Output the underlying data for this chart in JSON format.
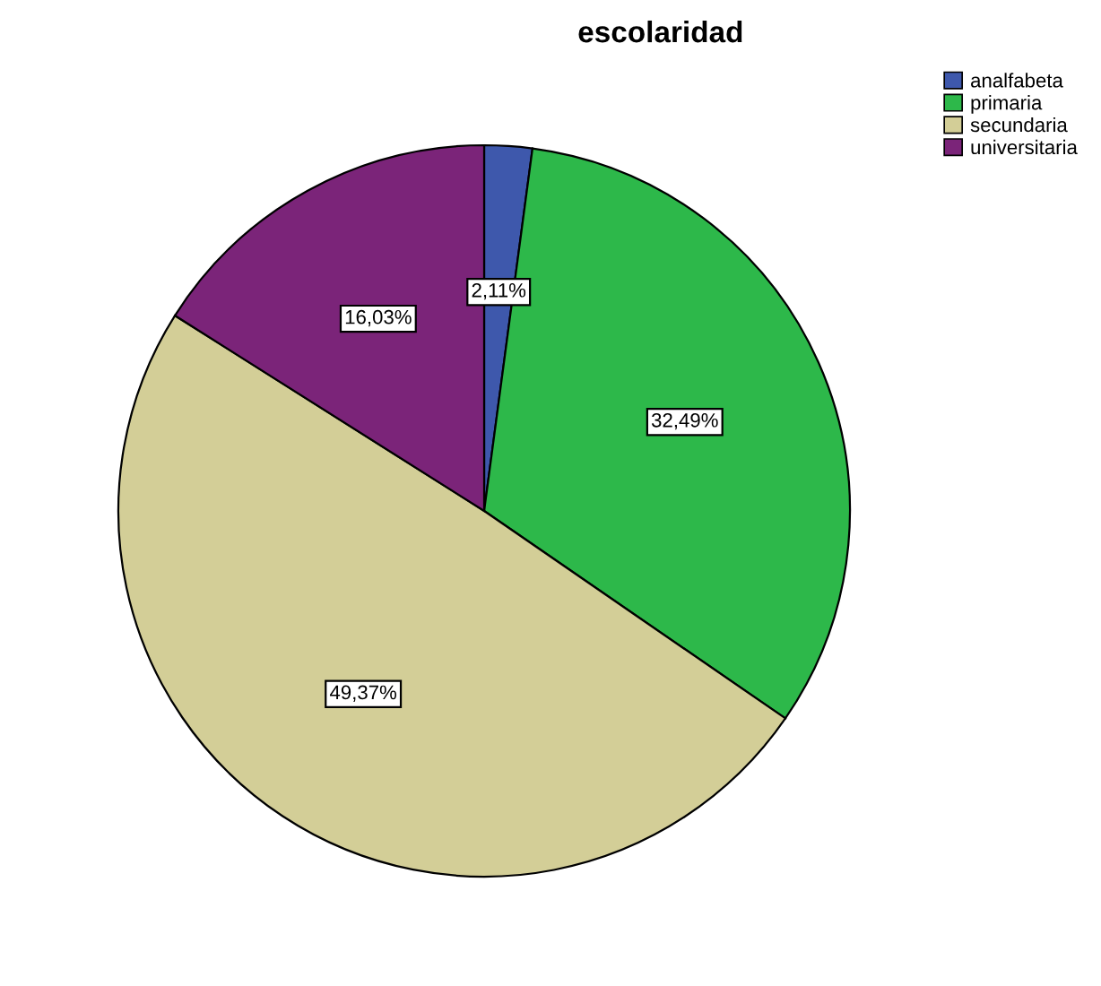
{
  "chart_data": {
    "type": "pie",
    "title": "escolaridad",
    "categories": [
      "analfabeta",
      "primaria",
      "secundaria",
      "universitaria"
    ],
    "values": [
      2.11,
      32.49,
      49.37,
      16.03
    ],
    "value_labels": [
      "2,11%",
      "32,49%",
      "49,37%",
      "16,03%"
    ],
    "colors": [
      "#3e58ac",
      "#2db84a",
      "#d3ce97",
      "#7b2479"
    ],
    "legend": "top right"
  }
}
